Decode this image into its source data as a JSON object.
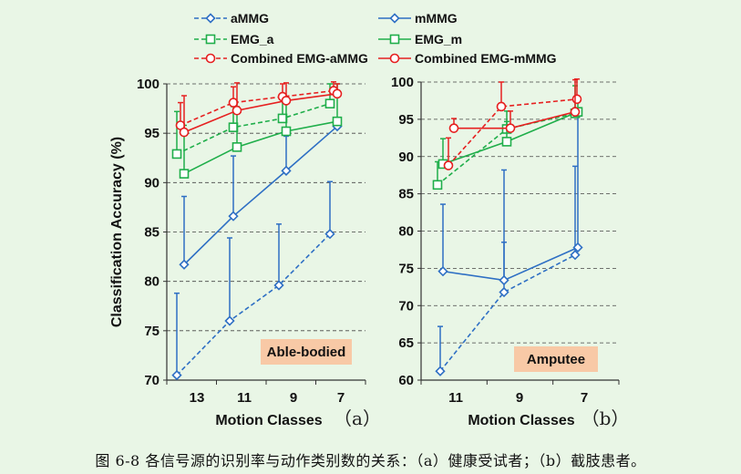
{
  "caption": "图 6-8 各信号源的识别率与动作类别数的关系：（a）健康受试者；（b）截肢患者。",
  "chart_data": [
    {
      "type": "line",
      "panel_label": "（a）",
      "condition_label": "Able-bodied",
      "xlabel": "Motion Classes",
      "ylabel": "Classification Accuracy (%)",
      "categories": [
        "13",
        "11",
        "9",
        "7"
      ],
      "ylim": [
        70,
        100
      ],
      "yticks": [
        70,
        75,
        80,
        85,
        90,
        95,
        100
      ],
      "grid": "horizontal dashed",
      "error_bars": "upper",
      "series": [
        {
          "name": "aMMG",
          "color": "#2e6fc4",
          "dash": true,
          "marker": "diamond",
          "values": [
            70.5,
            76.0,
            79.6,
            84.8
          ],
          "err": [
            8.3,
            8.4,
            6.2,
            5.3
          ]
        },
        {
          "name": "mMMG",
          "color": "#2e6fc4",
          "dash": false,
          "marker": "diamond",
          "values": [
            81.7,
            86.6,
            91.2,
            95.7
          ],
          "err": [
            6.9,
            6.1,
            3.5,
            0
          ]
        },
        {
          "name": "EMG_a",
          "color": "#1fae4a",
          "dash": true,
          "marker": "square",
          "values": [
            92.9,
            95.6,
            96.5,
            98.0
          ],
          "err": [
            4.3,
            2.1,
            2.2,
            2.0
          ]
        },
        {
          "name": "EMG_m",
          "color": "#1fae4a",
          "dash": false,
          "marker": "square",
          "values": [
            90.9,
            93.6,
            95.2,
            96.2
          ],
          "err": [
            4.9,
            4.1,
            3.3,
            3.8
          ]
        },
        {
          "name": "Combined EMG-aMMG",
          "color": "#e62020",
          "dash": true,
          "marker": "circle",
          "values": [
            95.8,
            98.1,
            98.7,
            99.3
          ],
          "err": [
            2.3,
            1.6,
            1.3,
            0.9
          ]
        },
        {
          "name": "Combined EMG-mMMG",
          "color": "#e62020",
          "dash": false,
          "marker": "circle",
          "values": [
            95.1,
            97.3,
            98.3,
            99.0
          ],
          "err": [
            3.7,
            2.8,
            1.8,
            1.0
          ]
        }
      ]
    },
    {
      "type": "line",
      "panel_label": "（b）",
      "condition_label": "Amputee",
      "xlabel": "Motion Classes",
      "ylabel": "",
      "categories": [
        "11",
        "9",
        "7"
      ],
      "ylim": [
        60,
        100
      ],
      "yticks": [
        60,
        65,
        70,
        75,
        80,
        85,
        90,
        95,
        100
      ],
      "grid": "horizontal dashed",
      "error_bars": "upper",
      "series": [
        {
          "name": "aMMG",
          "color": "#2e6fc4",
          "dash": true,
          "marker": "diamond",
          "values": [
            61.2,
            71.8,
            76.8
          ],
          "err": [
            6.0,
            6.7,
            11.9
          ]
        },
        {
          "name": "mMMG",
          "color": "#2e6fc4",
          "dash": false,
          "marker": "diamond",
          "values": [
            74.6,
            73.4,
            77.8
          ],
          "err": [
            9.0,
            14.8,
            17.6
          ]
        },
        {
          "name": "EMG_a",
          "color": "#1fae4a",
          "dash": true,
          "marker": "square",
          "values": [
            86.2,
            93.7,
            95.8
          ],
          "err": [
            3.1,
            2.4,
            3.7
          ]
        },
        {
          "name": "EMG_m",
          "color": "#1fae4a",
          "dash": false,
          "marker": "square",
          "values": [
            89.0,
            92.0,
            96.0
          ],
          "err": [
            3.4,
            2.7,
            1.9
          ]
        },
        {
          "name": "Combined EMG-aMMG",
          "color": "#e62020",
          "dash": true,
          "marker": "circle",
          "values": [
            88.8,
            96.7,
            97.7
          ],
          "err": [
            3.7,
            3.3,
            2.7
          ]
        },
        {
          "name": "Combined EMG-mMMG",
          "color": "#e62020",
          "dash": false,
          "marker": "circle",
          "values": [
            93.8,
            93.8,
            96.0
          ],
          "err": [
            1.3,
            2.3,
            4.3
          ]
        }
      ]
    }
  ]
}
